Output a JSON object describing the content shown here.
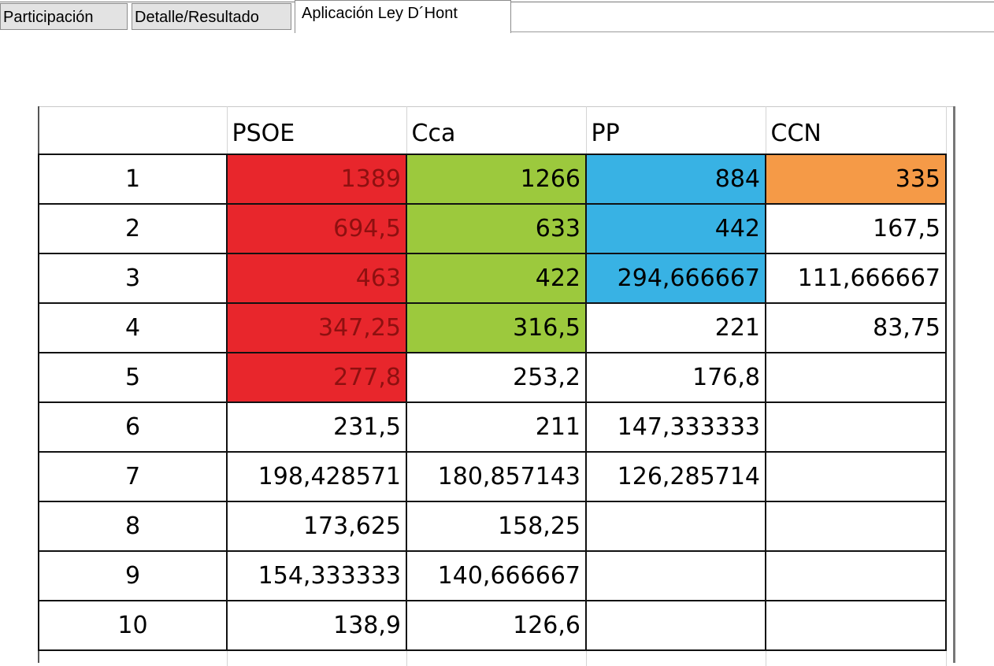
{
  "tabs": [
    {
      "label": "Participación",
      "active": false
    },
    {
      "label": "Detalle/Resultado",
      "active": false
    },
    {
      "label": "Aplicación Ley D´Hont",
      "active": true
    }
  ],
  "table": {
    "headers": [
      "",
      "PSOE",
      "Cca",
      "PP",
      "CCN"
    ],
    "rows": [
      [
        "1",
        "1389",
        "1266",
        "884",
        "335"
      ],
      [
        "2",
        "694,5",
        "633",
        "442",
        "167,5"
      ],
      [
        "3",
        "463",
        "422",
        "294,666667",
        "111,666667"
      ],
      [
        "4",
        "347,25",
        "316,5",
        "221",
        "83,75"
      ],
      [
        "5",
        "277,8",
        "253,2",
        "176,8",
        ""
      ],
      [
        "6",
        "231,5",
        "211",
        "147,333333",
        ""
      ],
      [
        "7",
        "198,428571",
        "180,857143",
        "126,285714",
        ""
      ],
      [
        "8",
        "173,625",
        "158,25",
        "",
        ""
      ],
      [
        "9",
        "154,333333",
        "140,666667",
        "",
        ""
      ],
      [
        "10",
        "138,9",
        "126,6",
        "",
        ""
      ]
    ],
    "seat_highlight_colors": {
      "PSOE": "#e8262c",
      "Cca": "#9cc93d",
      "PP": "#38b2e4",
      "CCN": "#f59a47"
    },
    "seats_highlighted_rows": {
      "PSOE": 5,
      "Cca": 4,
      "PP": 3,
      "CCN": 1
    }
  }
}
